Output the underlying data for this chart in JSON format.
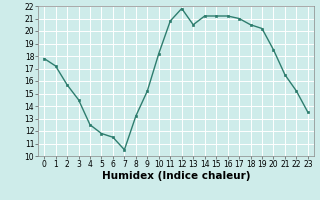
{
  "x": [
    0,
    1,
    2,
    3,
    4,
    5,
    6,
    7,
    8,
    9,
    10,
    11,
    12,
    13,
    14,
    15,
    16,
    17,
    18,
    19,
    20,
    21,
    22,
    23
  ],
  "y": [
    17.8,
    17.2,
    15.7,
    14.5,
    12.5,
    11.8,
    11.5,
    10.5,
    13.2,
    15.2,
    18.2,
    20.8,
    21.8,
    20.5,
    21.2,
    21.2,
    21.2,
    21.0,
    20.5,
    20.2,
    18.5,
    16.5,
    15.2,
    13.5
  ],
  "line_color": "#2e7d6e",
  "marker": "s",
  "marker_size": 2.0,
  "bg_color": "#ceecea",
  "grid_color": "#ffffff",
  "xlabel": "Humidex (Indice chaleur)",
  "xlabel_fontsize": 7.5,
  "ylim": [
    10,
    22
  ],
  "xlim": [
    -0.5,
    23.5
  ],
  "yticks": [
    10,
    11,
    12,
    13,
    14,
    15,
    16,
    17,
    18,
    19,
    20,
    21,
    22
  ],
  "xticks": [
    0,
    1,
    2,
    3,
    4,
    5,
    6,
    7,
    8,
    9,
    10,
    11,
    12,
    13,
    14,
    15,
    16,
    17,
    18,
    19,
    20,
    21,
    22,
    23
  ],
  "tick_fontsize": 5.5,
  "linewidth": 1.0
}
